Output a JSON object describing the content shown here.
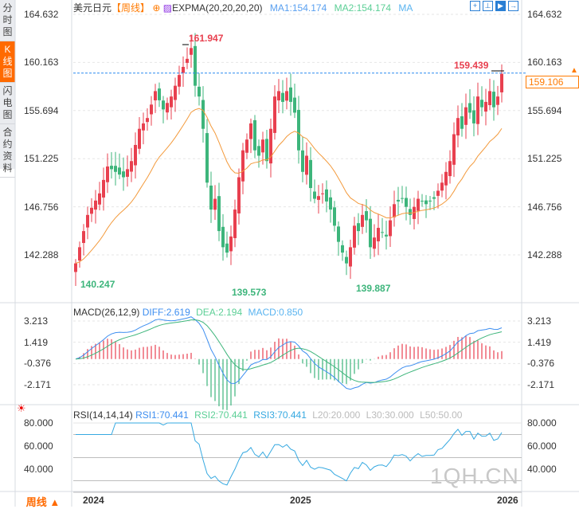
{
  "sidebar": {
    "tabs": [
      {
        "label": "分时图",
        "active": false
      },
      {
        "label": "K线图",
        "active": true
      },
      {
        "label": "闪电图",
        "active": false
      },
      {
        "label": "合约资料",
        "active": false
      }
    ]
  },
  "header": {
    "symbol": "美元日元",
    "period": "【周线】",
    "indicator": "EXPMA(20,20,20,20)",
    "ma1": "MA1:154.174",
    "ma2": "MA2:154.174",
    "ma": "MA"
  },
  "toolbar": {
    "icons": [
      "crosshair-icon",
      "zoom-in-icon",
      "zoom-out-icon",
      "exit-icon"
    ]
  },
  "main": {
    "y_ticks": [
      "164.632",
      "160.163",
      "155.694",
      "151.225",
      "146.756",
      "142.288"
    ],
    "high_label": "161.947",
    "high2_label": "159.439",
    "low1_label": "140.247",
    "low2_label": "139.573",
    "low3_label": "139.887",
    "current_price": "159.106"
  },
  "macd": {
    "title": "MACD(26,12,9)",
    "diff": "DIFF:2.619",
    "dea": "DEA:2.194",
    "macd": "MACD:0.850",
    "y_ticks": [
      "3.213",
      "1.419",
      "-0.376",
      "-2.171"
    ]
  },
  "rsi": {
    "title": "RSI(14,14,14)",
    "rsi1": "RSI1:70.441",
    "rsi2": "RSI2:70.441",
    "rsi3": "RSI3:70.441",
    "l20": "L20:20.000",
    "l30": "L30:30.000",
    "l50": "L50:50.00",
    "y_ticks": [
      "80.000",
      "60.000",
      "40.000"
    ]
  },
  "xaxis": {
    "labels": [
      "2024",
      "2025",
      "2026"
    ],
    "period_button": "周线 ▲"
  },
  "watermark": "1QH.CN",
  "colors": {
    "up": "#e8404f",
    "down": "#3db57b",
    "ema": "#f39a3c",
    "diff": "#3d8ef0",
    "dea": "#3db57b",
    "rsi": "#36a9e1",
    "accent": "#ff6a00"
  },
  "chart_data": {
    "type": "candlestick",
    "timeframe": "weekly",
    "weeks": 108,
    "close_anchors": [
      [
        0,
        141.5
      ],
      [
        3,
        146
      ],
      [
        6,
        148
      ],
      [
        8,
        150.5
      ],
      [
        10,
        150
      ],
      [
        12,
        149.5
      ],
      [
        14,
        151
      ],
      [
        16,
        154
      ],
      [
        18,
        155
      ],
      [
        20,
        157.5
      ],
      [
        22,
        155.8
      ],
      [
        24,
        157
      ],
      [
        26,
        159
      ],
      [
        28,
        160.5
      ],
      [
        29,
        161.5
      ],
      [
        30,
        158
      ],
      [
        31,
        157
      ],
      [
        32,
        154
      ],
      [
        33,
        149
      ],
      [
        34,
        146.5
      ],
      [
        35,
        147.5
      ],
      [
        36,
        144.5
      ],
      [
        37,
        143
      ],
      [
        38,
        142.5
      ],
      [
        39,
        144
      ],
      [
        40,
        146.5
      ],
      [
        41,
        149.5
      ],
      [
        42,
        152
      ],
      [
        43,
        153
      ],
      [
        44,
        154.5
      ],
      [
        45,
        152
      ],
      [
        46,
        151.5
      ],
      [
        47,
        153
      ],
      [
        48,
        151
      ],
      [
        49,
        154
      ],
      [
        50,
        157
      ],
      [
        51,
        157.5
      ],
      [
        52,
        156.5
      ],
      [
        53,
        157.5
      ],
      [
        55,
        155.5
      ],
      [
        56,
        152
      ],
      [
        57,
        150
      ],
      [
        58,
        151.5
      ],
      [
        59,
        148.5
      ],
      [
        60,
        147.5
      ],
      [
        62,
        148
      ],
      [
        64,
        146.5
      ],
      [
        66,
        143.5
      ],
      [
        67,
        142.5
      ],
      [
        68,
        141.5
      ],
      [
        69,
        143
      ],
      [
        70,
        145
      ],
      [
        71,
        144.5
      ],
      [
        72,
        146
      ],
      [
        73,
        145.5
      ],
      [
        74,
        143
      ],
      [
        76,
        144.8
      ],
      [
        78,
        144
      ],
      [
        80,
        147
      ],
      [
        82,
        147.5
      ],
      [
        84,
        146
      ],
      [
        86,
        147.5
      ],
      [
        88,
        147
      ],
      [
        90,
        147.5
      ],
      [
        92,
        149
      ],
      [
        94,
        151
      ],
      [
        95,
        153.5
      ],
      [
        96,
        155
      ],
      [
        97,
        154
      ],
      [
        98,
        156
      ],
      [
        99,
        155.5
      ],
      [
        100,
        154.5
      ],
      [
        101,
        157
      ],
      [
        102,
        156
      ],
      [
        103,
        156.5
      ],
      [
        104,
        157.5
      ],
      [
        105,
        156
      ],
      [
        106,
        157
      ],
      [
        107,
        159.106
      ]
    ],
    "ylim": [
      142.288,
      164.632
    ]
  }
}
